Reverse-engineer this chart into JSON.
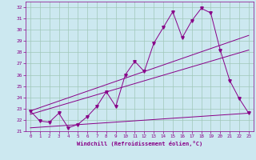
{
  "title": "",
  "xlabel": "Windchill (Refroidissement éolien,°C)",
  "background_color": "#cce8f0",
  "grid_color": "#a0c8b8",
  "line_color": "#880088",
  "xlim": [
    -0.5,
    23.5
  ],
  "ylim": [
    21.0,
    32.5
  ],
  "yticks": [
    21,
    22,
    23,
    24,
    25,
    26,
    27,
    28,
    29,
    30,
    31,
    32
  ],
  "xticks": [
    0,
    1,
    2,
    3,
    4,
    5,
    6,
    7,
    8,
    9,
    10,
    11,
    12,
    13,
    14,
    15,
    16,
    17,
    18,
    19,
    20,
    21,
    22,
    23
  ],
  "series1_x": [
    0,
    1,
    2,
    3,
    4,
    5,
    6,
    7,
    8,
    9,
    10,
    11,
    12,
    13,
    14,
    15,
    16,
    17,
    18,
    19,
    20,
    21,
    22,
    23
  ],
  "series1_y": [
    22.8,
    21.9,
    21.8,
    22.6,
    21.3,
    21.6,
    22.3,
    23.2,
    24.5,
    23.2,
    26.0,
    27.2,
    26.3,
    28.8,
    30.2,
    31.6,
    29.3,
    30.8,
    31.9,
    31.5,
    28.2,
    25.5,
    23.9,
    22.6
  ],
  "line1_x": [
    0,
    23
  ],
  "line1_y": [
    22.8,
    29.5
  ],
  "line2_x": [
    0,
    23
  ],
  "line2_y": [
    22.5,
    28.2
  ],
  "line3_x": [
    0,
    23
  ],
  "line3_y": [
    21.3,
    22.6
  ]
}
